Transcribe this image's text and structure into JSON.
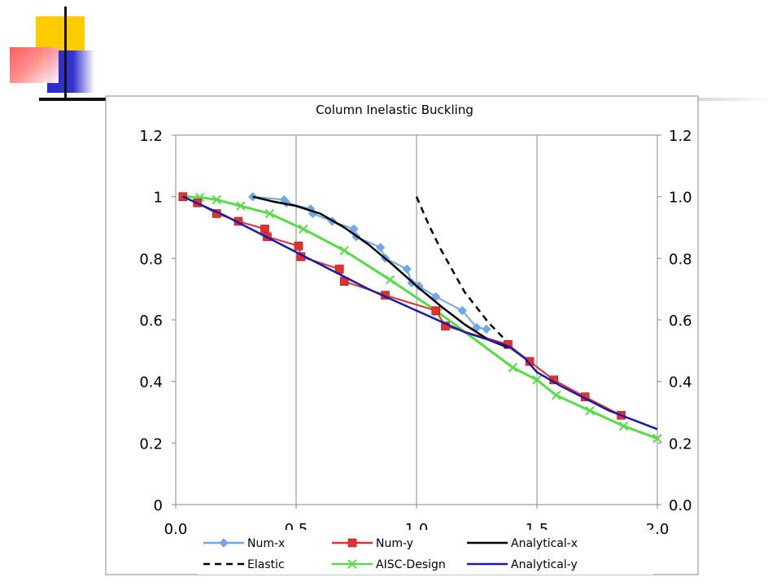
{
  "chart_data": {
    "type": "line",
    "title": "Column Inelastic Buckling",
    "xlim": [
      0,
      2
    ],
    "ylim": [
      0,
      1.2
    ],
    "x_ticks": [
      "0.0",
      "0.5",
      "1.0",
      "1.5",
      "2.0"
    ],
    "y_ticks_left": [
      "0",
      "0.2",
      "0.4",
      "0.6",
      "0.8",
      "1",
      "1.2"
    ],
    "y_ticks_right": [
      "0.0",
      "0.2",
      "0.4",
      "0.6",
      "0.8",
      "1.0",
      "1.2"
    ],
    "grid": "vertical",
    "legend_placement": "bottom",
    "series": [
      {
        "name": "Num-x",
        "color": "#6fa8e8",
        "line": "solid",
        "marker": "diamond",
        "points": [
          [
            0.32,
            1.0
          ],
          [
            0.45,
            0.99
          ],
          [
            0.46,
            0.98
          ],
          [
            0.56,
            0.96
          ],
          [
            0.57,
            0.945
          ],
          [
            0.65,
            0.92
          ],
          [
            0.74,
            0.895
          ],
          [
            0.75,
            0.87
          ],
          [
            0.85,
            0.835
          ],
          [
            0.87,
            0.8
          ],
          [
            0.96,
            0.765
          ],
          [
            0.98,
            0.72
          ],
          [
            1.01,
            0.71
          ],
          [
            1.08,
            0.675
          ],
          [
            1.19,
            0.63
          ],
          [
            1.25,
            0.575
          ],
          [
            1.29,
            0.57
          ]
        ]
      },
      {
        "name": "Num-y",
        "color": "#e03030",
        "line": "solid",
        "marker": "square",
        "points": [
          [
            0.03,
            1.0
          ],
          [
            0.09,
            0.98
          ],
          [
            0.17,
            0.945
          ],
          [
            0.26,
            0.92
          ],
          [
            0.37,
            0.895
          ],
          [
            0.38,
            0.87
          ],
          [
            0.51,
            0.84
          ],
          [
            0.52,
            0.805
          ],
          [
            0.68,
            0.765
          ],
          [
            0.7,
            0.725
          ],
          [
            0.87,
            0.68
          ],
          [
            1.08,
            0.63
          ],
          [
            1.12,
            0.58
          ],
          [
            1.38,
            0.52
          ],
          [
            1.47,
            0.465
          ],
          [
            1.57,
            0.405
          ],
          [
            1.7,
            0.35
          ],
          [
            1.85,
            0.29
          ]
        ]
      },
      {
        "name": "Analytical-x",
        "color": "#000000",
        "line": "solid",
        "marker": "none",
        "points": [
          [
            0.32,
            1.0
          ],
          [
            0.4,
            0.985
          ],
          [
            0.5,
            0.97
          ],
          [
            0.6,
            0.945
          ],
          [
            0.7,
            0.9
          ],
          [
            0.8,
            0.845
          ],
          [
            0.9,
            0.78
          ],
          [
            1.0,
            0.71
          ],
          [
            1.1,
            0.645
          ],
          [
            1.2,
            0.585
          ],
          [
            1.3,
            0.535
          ],
          [
            1.38,
            0.51
          ]
        ]
      },
      {
        "name": "Elastic",
        "color": "#000000",
        "line": "dashed",
        "marker": "none",
        "points": [
          [
            1.0,
            1.0
          ],
          [
            1.05,
            0.91
          ],
          [
            1.1,
            0.83
          ],
          [
            1.15,
            0.76
          ],
          [
            1.2,
            0.69
          ],
          [
            1.25,
            0.64
          ],
          [
            1.3,
            0.59
          ],
          [
            1.35,
            0.55
          ],
          [
            1.39,
            0.52
          ]
        ]
      },
      {
        "name": "AISC-Design",
        "color": "#55dd44",
        "line": "solid",
        "marker": "x",
        "points": [
          [
            0.03,
            1.0
          ],
          [
            0.1,
            0.998
          ],
          [
            0.17,
            0.99
          ],
          [
            0.27,
            0.97
          ],
          [
            0.39,
            0.945
          ],
          [
            0.53,
            0.895
          ],
          [
            0.7,
            0.825
          ],
          [
            0.89,
            0.73
          ],
          [
            1.09,
            0.625
          ],
          [
            1.4,
            0.445
          ],
          [
            1.5,
            0.405
          ],
          [
            1.58,
            0.355
          ],
          [
            1.72,
            0.305
          ],
          [
            1.86,
            0.255
          ],
          [
            2.0,
            0.215
          ]
        ]
      },
      {
        "name": "Analytical-y",
        "color": "#1a1aaa",
        "line": "solid",
        "marker": "none",
        "points": [
          [
            0.03,
            1.0
          ],
          [
            0.1,
            0.975
          ],
          [
            0.2,
            0.94
          ],
          [
            0.3,
            0.9
          ],
          [
            0.4,
            0.86
          ],
          [
            0.5,
            0.82
          ],
          [
            0.6,
            0.78
          ],
          [
            0.7,
            0.74
          ],
          [
            0.8,
            0.7
          ],
          [
            0.9,
            0.665
          ],
          [
            1.0,
            0.63
          ],
          [
            1.1,
            0.595
          ],
          [
            1.2,
            0.56
          ],
          [
            1.3,
            0.535
          ],
          [
            1.38,
            0.515
          ],
          [
            1.45,
            0.475
          ],
          [
            1.5,
            0.43
          ],
          [
            1.6,
            0.385
          ],
          [
            1.7,
            0.345
          ],
          [
            1.8,
            0.305
          ],
          [
            1.9,
            0.275
          ],
          [
            2.0,
            0.245
          ]
        ]
      }
    ]
  }
}
